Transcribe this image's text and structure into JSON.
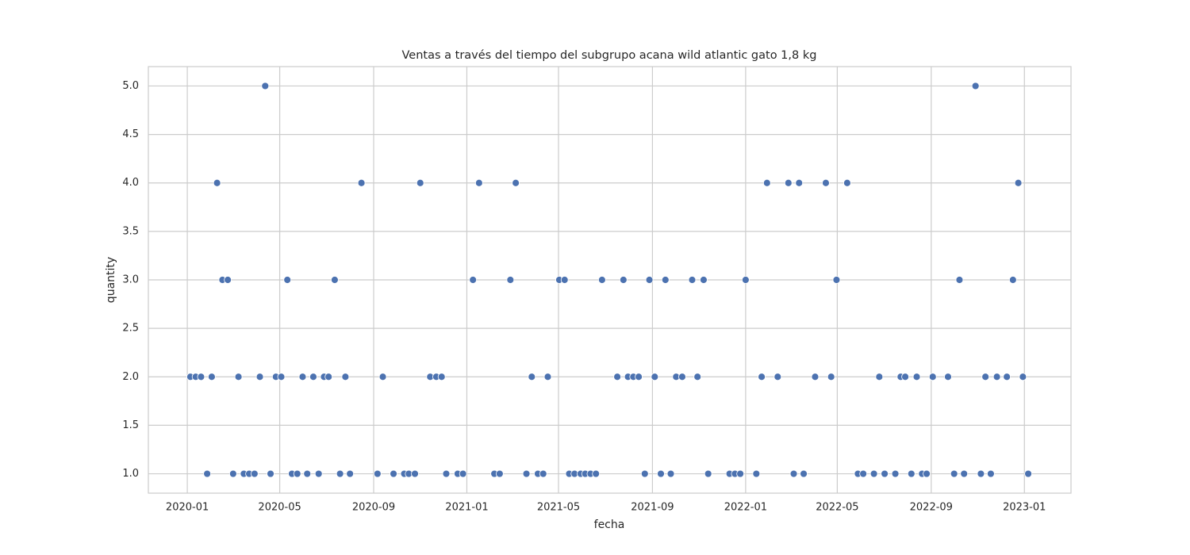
{
  "chart_data": {
    "type": "scatter",
    "title": "Ventas a través del tiempo del subgrupo acana wild atlantic gato 1,8 kg",
    "x_label": "fecha",
    "y_label": "quantity",
    "xlim": [
      "2019-11-11",
      "2023-03-03"
    ],
    "xticks": [
      {
        "value": "2020-01-01",
        "label": "2020-01"
      },
      {
        "value": "2020-05-01",
        "label": "2020-05"
      },
      {
        "value": "2020-09-01",
        "label": "2020-09"
      },
      {
        "value": "2021-01-01",
        "label": "2021-01"
      },
      {
        "value": "2021-05-01",
        "label": "2021-05"
      },
      {
        "value": "2021-09-01",
        "label": "2021-09"
      },
      {
        "value": "2022-01-01",
        "label": "2022-01"
      },
      {
        "value": "2022-05-01",
        "label": "2022-05"
      },
      {
        "value": "2022-09-01",
        "label": "2022-09"
      },
      {
        "value": "2023-01-01",
        "label": "2023-01"
      }
    ],
    "ylim": [
      0.8,
      5.2
    ],
    "yticks": [
      {
        "value": 1,
        "label": "1.0"
      },
      {
        "value": 1.5,
        "label": "1.5"
      },
      {
        "value": 2,
        "label": "2.0"
      },
      {
        "value": 2.5,
        "label": "2.5"
      },
      {
        "value": 3,
        "label": "3.0"
      },
      {
        "value": 3.5,
        "label": "3.5"
      },
      {
        "value": 4,
        "label": "4.0"
      },
      {
        "value": 4.5,
        "label": "4.5"
      },
      {
        "value": 5,
        "label": "5.0"
      }
    ],
    "grid": true,
    "color": "#4c72b0",
    "x": [
      "2020-01-05",
      "2020-01-12",
      "2020-01-19",
      "2020-02-02",
      "2020-03-08",
      "2020-04-05",
      "2020-04-26",
      "2020-05-03",
      "2020-05-31",
      "2020-06-14",
      "2020-06-28",
      "2020-07-04",
      "2020-07-26",
      "2020-09-13",
      "2020-11-14",
      "2020-11-22",
      "2020-11-29",
      "2021-03-27",
      "2021-04-17",
      "2021-07-17",
      "2021-07-31",
      "2021-08-07",
      "2021-08-14",
      "2021-09-04",
      "2021-10-02",
      "2021-10-10",
      "2021-10-30",
      "2022-01-22",
      "2022-02-12",
      "2022-04-02",
      "2022-04-23",
      "2022-06-25",
      "2022-07-23",
      "2022-07-29",
      "2022-08-13",
      "2022-09-03",
      "2022-09-23",
      "2022-11-11",
      "2022-11-26",
      "2022-12-09",
      "2022-12-30",
      "2020-01-27",
      "2020-03-01",
      "2020-03-15",
      "2020-03-22",
      "2020-03-29",
      "2020-04-19",
      "2020-05-17",
      "2020-05-24",
      "2020-06-06",
      "2020-06-21",
      "2020-07-19",
      "2020-08-01",
      "2020-09-06",
      "2020-09-27",
      "2020-10-11",
      "2020-10-17",
      "2020-10-25",
      "2020-12-05",
      "2020-12-20",
      "2020-12-27",
      "2021-02-06",
      "2021-02-13",
      "2021-03-20",
      "2021-04-04",
      "2021-04-11",
      "2021-05-15",
      "2021-05-22",
      "2021-05-30",
      "2021-06-05",
      "2021-06-12",
      "2021-06-19",
      "2021-08-22",
      "2021-09-12",
      "2021-09-25",
      "2021-11-13",
      "2021-12-11",
      "2021-12-18",
      "2021-12-25",
      "2022-01-15",
      "2022-03-05",
      "2022-03-18",
      "2022-05-28",
      "2022-06-04",
      "2022-06-18",
      "2022-07-02",
      "2022-07-16",
      "2022-08-06",
      "2022-08-20",
      "2022-08-26",
      "2022-10-01",
      "2022-10-14",
      "2022-11-05",
      "2022-11-18",
      "2023-01-06",
      "2020-02-16",
      "2020-02-23",
      "2020-05-11",
      "2020-07-12",
      "2021-01-09",
      "2021-02-27",
      "2021-05-02",
      "2021-05-09",
      "2021-06-27",
      "2021-07-25",
      "2021-08-28",
      "2021-09-18",
      "2021-10-23",
      "2021-11-07",
      "2022-01-01",
      "2022-04-30",
      "2022-10-08",
      "2022-12-17",
      "2020-02-09",
      "2020-08-16",
      "2020-11-01",
      "2021-01-17",
      "2021-03-06",
      "2022-01-29",
      "2022-02-26",
      "2022-03-12",
      "2022-04-16",
      "2022-05-14",
      "2022-12-24",
      "2020-04-12",
      "2022-10-29"
    ],
    "values": [
      2,
      2,
      2,
      2,
      2,
      2,
      2,
      2,
      2,
      2,
      2,
      2,
      2,
      2,
      2,
      2,
      2,
      2,
      2,
      2,
      2,
      2,
      2,
      2,
      2,
      2,
      2,
      2,
      2,
      2,
      2,
      2,
      2,
      2,
      2,
      2,
      2,
      2,
      2,
      2,
      2,
      1,
      1,
      1,
      1,
      1,
      1,
      1,
      1,
      1,
      1,
      1,
      1,
      1,
      1,
      1,
      1,
      1,
      1,
      1,
      1,
      1,
      1,
      1,
      1,
      1,
      1,
      1,
      1,
      1,
      1,
      1,
      1,
      1,
      1,
      1,
      1,
      1,
      1,
      1,
      1,
      1,
      1,
      1,
      1,
      1,
      1,
      1,
      1,
      1,
      1,
      1,
      1,
      1,
      1,
      3,
      3,
      3,
      3,
      3,
      3,
      3,
      3,
      3,
      3,
      3,
      3,
      3,
      3,
      3,
      3,
      3,
      3,
      4,
      4,
      4,
      4,
      4,
      4,
      4,
      4,
      4,
      4,
      4,
      5,
      5
    ]
  }
}
